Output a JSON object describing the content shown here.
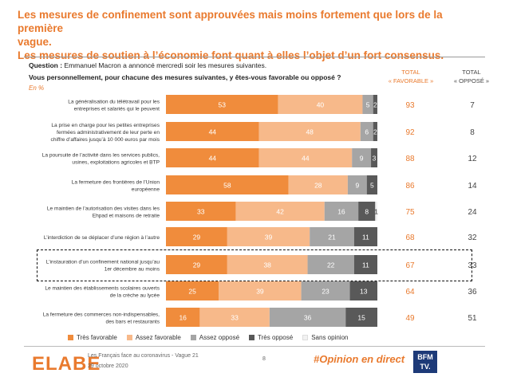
{
  "title": {
    "line1": "Les mesures de confinement sont approuvées mais moins fortement que lors de la première",
    "line2": "vague.",
    "line3": "Les mesures de soutien à l’économie font quant à elles l’objet d’un fort consensus."
  },
  "question": {
    "label": "Question :",
    "text": "Emmanuel Macron a annoncé mercredi soir les mesures suivantes.",
    "subtext": "Vous personnellement, pour chacune des mesures suivantes, y êtes-vous favorable ou opposé ?",
    "unit": "En %"
  },
  "columns": {
    "fav_line1": "TOTAL",
    "fav_line2": "« FAVORABLE »",
    "opp_line1": "TOTAL",
    "opp_line2": "« OPPOSÉ »"
  },
  "colors": {
    "tres_favorable": "#F08C3C",
    "assez_favorable": "#F7B98A",
    "assez_oppose": "#A5A5A5",
    "tres_oppose": "#595959",
    "sans_opinion": "#F2F2F2",
    "accent": "#E97A2E"
  },
  "chart_data": {
    "type": "bar",
    "orientation": "horizontal",
    "stacked": true,
    "xlim": [
      0,
      100
    ],
    "categories": [
      [
        "La généralisation du télétravail pour les",
        "entreprises et salariés qui le peuvent"
      ],
      [
        "La prise en charge pour les petites entreprises",
        "fermées administrativement de leur perte en",
        "chiffre d’affaires jusqu’à 10 000 euros par mois"
      ],
      [
        "La poursuite de l’activité dans les services publics,",
        "usines, exploitations agricoles et BTP"
      ],
      [
        "La fermeture des frontières de l’Union",
        "européenne"
      ],
      [
        "Le maintien de l’autorisation des visites dans les",
        "Ehpad et maisons de retraite"
      ],
      [
        "L’interdiction de se déplacer d’une région à l’autre"
      ],
      [
        "L’instauration d’un confinement national jusqu’au",
        "1er décembre au moins"
      ],
      [
        "Le maintien des établissements scolaires ouverts",
        "de la crèche au lycée"
      ],
      [
        "La fermeture des commerces non-indispensables,",
        "des bars et restaurants"
      ]
    ],
    "series": [
      {
        "name": "Très favorable",
        "values": [
          53,
          44,
          44,
          58,
          33,
          29,
          29,
          25,
          16
        ]
      },
      {
        "name": "Assez favorable",
        "values": [
          40,
          48,
          44,
          28,
          42,
          39,
          38,
          39,
          33
        ]
      },
      {
        "name": "Assez opposé",
        "values": [
          5,
          6,
          9,
          9,
          16,
          21,
          22,
          23,
          36
        ]
      },
      {
        "name": "Très opposé",
        "values": [
          2,
          2,
          3,
          5,
          8,
          11,
          11,
          13,
          15
        ]
      },
      {
        "name": "Sans opinion",
        "values": [
          0,
          0,
          0,
          0,
          1,
          0,
          0,
          0,
          0
        ]
      }
    ],
    "total_favorable": [
      93,
      92,
      88,
      86,
      75,
      68,
      67,
      64,
      49
    ],
    "total_oppose": [
      7,
      8,
      12,
      14,
      24,
      32,
      33,
      36,
      51
    ],
    "highlighted_index": 6,
    "legend_placement": "bottom"
  },
  "footer": {
    "logo": "ELABE",
    "source_line1": "Les Français face au coronavirus - Vague 21",
    "source_line2": "29 octobre 2020",
    "page_number": "8",
    "hashtag": "#Opinion en direct",
    "bfm_line1": "BFM",
    "bfm_line2": "TV."
  }
}
